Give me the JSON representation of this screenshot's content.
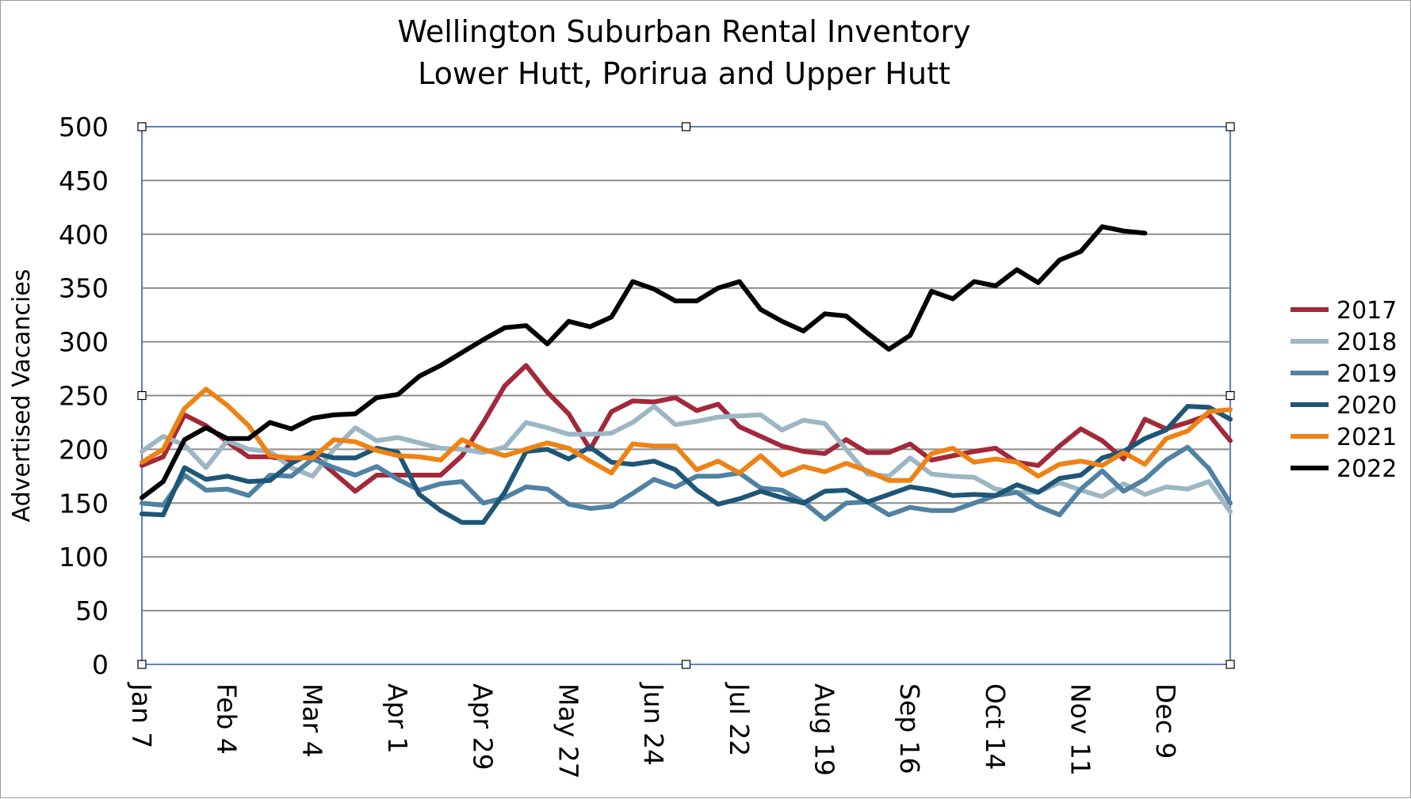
{
  "chart_data": {
    "type": "line",
    "title": "Wellington Suburban Rental Inventory",
    "subtitle": "Lower Hutt, Porirua and Upper Hutt",
    "xlabel": "",
    "ylabel": "Advertised Vacancies",
    "ylim": [
      0,
      500
    ],
    "yticks": [
      0,
      50,
      100,
      150,
      200,
      250,
      300,
      350,
      400,
      450,
      500
    ],
    "grid": true,
    "legend_position": "right",
    "week_count": 52,
    "x_tick_labels": [
      {
        "label": "Jan 7",
        "week": 0
      },
      {
        "label": "Feb 4",
        "week": 4
      },
      {
        "label": "Mar 4",
        "week": 8
      },
      {
        "label": "Apr 1",
        "week": 12
      },
      {
        "label": "Apr 29",
        "week": 16
      },
      {
        "label": "May 27",
        "week": 20
      },
      {
        "label": "Jun 24",
        "week": 24
      },
      {
        "label": "Jul 22",
        "week": 28
      },
      {
        "label": "Aug 19",
        "week": 32
      },
      {
        "label": "Sep 16",
        "week": 36
      },
      {
        "label": "Oct 14",
        "week": 40
      },
      {
        "label": "Nov 11",
        "week": 44
      },
      {
        "label": "Dec 9",
        "week": 48
      }
    ],
    "series": [
      {
        "name": "2017",
        "color": "#a3283a",
        "values": [
          185,
          193,
          232,
          222,
          207,
          193,
          193,
          190,
          195,
          178,
          161,
          176,
          176,
          176,
          176,
          194,
          225,
          259,
          278,
          253,
          233,
          200,
          235,
          245,
          244,
          248,
          236,
          242,
          221,
          212,
          203,
          198,
          196,
          209,
          197,
          197,
          205,
          190,
          194,
          198,
          201,
          188,
          185,
          203,
          219,
          208,
          191,
          228,
          219,
          225,
          232,
          208
        ]
      },
      {
        "name": "2018",
        "color": "#9cb6c4",
        "values": [
          198,
          212,
          204,
          183,
          208,
          200,
          198,
          183,
          175,
          200,
          220,
          208,
          211,
          206,
          201,
          200,
          197,
          202,
          225,
          220,
          214,
          214,
          215,
          225,
          240,
          223,
          226,
          230,
          231,
          232,
          218,
          227,
          224,
          200,
          177,
          175,
          192,
          177,
          175,
          174,
          163,
          160,
          160,
          169,
          162,
          156,
          168,
          158,
          165,
          163,
          170,
          142
        ]
      },
      {
        "name": "2019",
        "color": "#4f82a3",
        "values": [
          150,
          148,
          176,
          162,
          163,
          157,
          176,
          175,
          191,
          183,
          176,
          184,
          172,
          162,
          168,
          170,
          150,
          155,
          165,
          163,
          149,
          145,
          147,
          159,
          172,
          165,
          175,
          175,
          178,
          164,
          162,
          151,
          135,
          150,
          151,
          139,
          146,
          143,
          143,
          150,
          157,
          160,
          147,
          139,
          163,
          180,
          161,
          172,
          190,
          202,
          182,
          150
        ]
      },
      {
        "name": "2020",
        "color": "#1d5677",
        "values": [
          140,
          139,
          183,
          172,
          175,
          170,
          171,
          187,
          197,
          192,
          192,
          201,
          197,
          158,
          143,
          132,
          132,
          160,
          198,
          200,
          191,
          202,
          188,
          186,
          189,
          181,
          162,
          149,
          154,
          161,
          155,
          150,
          161,
          162,
          151,
          158,
          165,
          162,
          157,
          158,
          157,
          167,
          160,
          173,
          176,
          192,
          198,
          210,
          218,
          240,
          239,
          228
        ]
      },
      {
        "name": "2021",
        "color": "#ee8214",
        "values": [
          188,
          200,
          238,
          256,
          241,
          222,
          194,
          192,
          192,
          209,
          207,
          199,
          194,
          193,
          190,
          209,
          200,
          194,
          200,
          206,
          201,
          189,
          178,
          205,
          203,
          203,
          181,
          189,
          178,
          194,
          176,
          184,
          179,
          187,
          180,
          171,
          171,
          196,
          201,
          188,
          191,
          188,
          175,
          186,
          189,
          185,
          197,
          186,
          210,
          217,
          235,
          237
        ]
      },
      {
        "name": "2022",
        "color": "#000000",
        "values": [
          155,
          170,
          209,
          220,
          210,
          210,
          225,
          219,
          229,
          232,
          233,
          248,
          251,
          268,
          278,
          290,
          302,
          313,
          315,
          298,
          319,
          314,
          323,
          356,
          349,
          338,
          338,
          350,
          356,
          330,
          319,
          310,
          326,
          324,
          308,
          293,
          306,
          347,
          340,
          356,
          352,
          367,
          355,
          376,
          384,
          407,
          403,
          401
        ]
      }
    ]
  },
  "legend": [
    {
      "label": "2017",
      "color": "#a3283a"
    },
    {
      "label": "2018",
      "color": "#9cb6c4"
    },
    {
      "label": "2019",
      "color": "#4f82a3"
    },
    {
      "label": "2020",
      "color": "#1d5677"
    },
    {
      "label": "2021",
      "color": "#ee8214"
    },
    {
      "label": "2022",
      "color": "#000000"
    }
  ]
}
